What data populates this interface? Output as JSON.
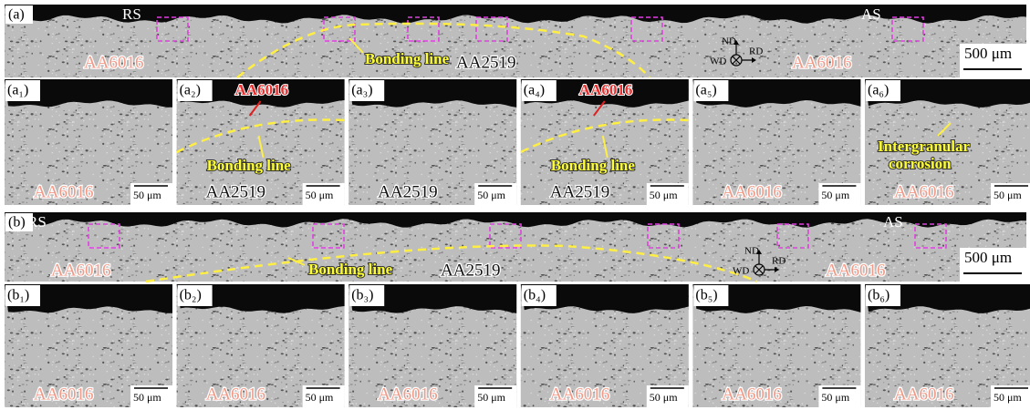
{
  "overview_a": {
    "label": "(a)",
    "rs": "RS",
    "as": "AS",
    "left_material": "AA6016",
    "center_material": "AA2519",
    "right_material": "AA6016",
    "bonding_line": "Bonding line",
    "scale": "500 μm",
    "nd": "ND",
    "rd": "RD",
    "wd": "WD"
  },
  "row_a": [
    {
      "label": "(a₁)",
      "material": "AA6016",
      "material_color": "#f29a88",
      "scale": "50 μm"
    },
    {
      "label": "(a₂)",
      "annotation": "AA6016",
      "bonding_line": "Bonding line",
      "material": "AA2519",
      "material_color": "#111111",
      "scale": "50 μm"
    },
    {
      "label": "(a₃)",
      "material": "AA2519",
      "material_color": "#111111",
      "scale": "50 μm"
    },
    {
      "label": "(a₄)",
      "annotation": "AA6016",
      "bonding_line": "Bonding line",
      "material": "AA2519",
      "material_color": "#111111",
      "scale": "50 μm"
    },
    {
      "label": "(a₅)",
      "material": "AA6016",
      "material_color": "#f29a88",
      "scale": "50 μm"
    },
    {
      "label": "(a₆)",
      "corrosion_note": [
        "Intergranular",
        "corrosion"
      ],
      "material": "AA6016",
      "material_color": "#f29a88",
      "scale": "50 μm"
    }
  ],
  "overview_b": {
    "label": "(b)",
    "rs": "RS",
    "as": "AS",
    "left_material": "AA6016",
    "center_material": "AA2519",
    "right_material": "AA6016",
    "bonding_line": "Bonding line",
    "scale": "500 μm",
    "nd": "ND",
    "rd": "RD",
    "wd": "WD"
  },
  "row_b": [
    {
      "label": "(b₁)",
      "material": "AA6016",
      "material_color": "#f29a88",
      "scale": "50 μm"
    },
    {
      "label": "(b₂)",
      "material": "AA6016",
      "material_color": "#f29a88",
      "scale": "50 μm"
    },
    {
      "label": "(b₃)",
      "material": "AA6016",
      "material_color": "#f29a88",
      "scale": "50 μm"
    },
    {
      "label": "(b₄)",
      "material": "AA6016",
      "material_color": "#f29a88",
      "scale": "50 μm"
    },
    {
      "label": "(b₅)",
      "material": "AA6016",
      "material_color": "#f29a88",
      "scale": "50 μm"
    },
    {
      "label": "(b₆)",
      "material": "AA6016",
      "material_color": "#f29a88",
      "scale": "50 μm"
    }
  ]
}
